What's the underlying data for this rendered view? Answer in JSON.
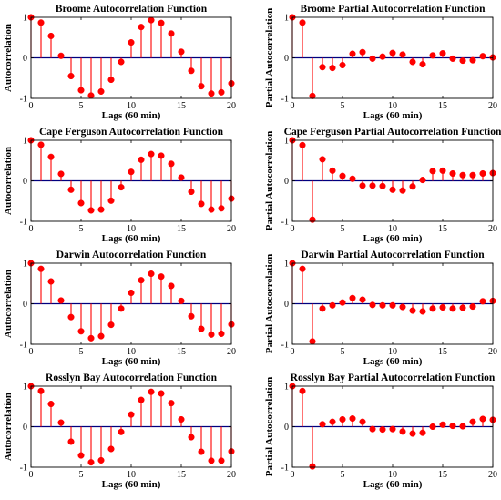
{
  "figure": {
    "colors": {
      "stem": "#ff0000",
      "baseline": "#00007f",
      "axis": "#000000",
      "background": "#ffffff"
    }
  },
  "chart_data": [
    {
      "type": "stem",
      "title": "Broome Autocorrelation Function",
      "xlabel": "Lags (60 min)",
      "ylabel": "Autocorrelation",
      "xlim": [
        0,
        20
      ],
      "ylim": [
        -1,
        1
      ],
      "xticks": [
        0,
        5,
        10,
        15,
        20
      ],
      "yticks": [
        -1,
        0,
        1
      ],
      "x": [
        0,
        1,
        2,
        3,
        4,
        5,
        6,
        7,
        8,
        9,
        10,
        11,
        12,
        13,
        14,
        15,
        16,
        17,
        18,
        19,
        20
      ],
      "values": [
        1.0,
        0.87,
        0.54,
        0.05,
        -0.45,
        -0.8,
        -0.93,
        -0.83,
        -0.54,
        -0.1,
        0.38,
        0.76,
        0.93,
        0.86,
        0.6,
        0.15,
        -0.32,
        -0.7,
        -0.88,
        -0.85,
        -0.63
      ]
    },
    {
      "type": "stem",
      "title": "Broome Partial Autocorrelation Function",
      "xlabel": "Lags (60 min)",
      "ylabel": "Partial Autocorrelation",
      "xlim": [
        0,
        20
      ],
      "ylim": [
        -1,
        1
      ],
      "xticks": [
        0,
        5,
        10,
        15,
        20
      ],
      "yticks": [
        -1,
        0,
        1
      ],
      "x": [
        0,
        1,
        2,
        3,
        4,
        5,
        6,
        7,
        8,
        9,
        10,
        11,
        12,
        13,
        14,
        15,
        16,
        17,
        18,
        19,
        20
      ],
      "values": [
        1.0,
        0.87,
        -0.94,
        -0.23,
        -0.25,
        -0.18,
        0.1,
        0.14,
        -0.02,
        0.03,
        0.12,
        0.08,
        -0.1,
        -0.16,
        0.06,
        0.11,
        -0.02,
        -0.07,
        -0.06,
        0.04,
        0.01
      ]
    },
    {
      "type": "stem",
      "title": "Cape Ferguson Autocorrelation Function",
      "xlabel": "Lags (60 min)",
      "ylabel": "Autocorrelation",
      "xlim": [
        0,
        20
      ],
      "ylim": [
        -1,
        1
      ],
      "xticks": [
        0,
        5,
        10,
        15,
        20
      ],
      "yticks": [
        -1,
        0,
        1
      ],
      "x": [
        0,
        1,
        2,
        3,
        4,
        5,
        6,
        7,
        8,
        9,
        10,
        11,
        12,
        13,
        14,
        15,
        16,
        17,
        18,
        19,
        20
      ],
      "values": [
        1.0,
        0.89,
        0.59,
        0.17,
        -0.22,
        -0.55,
        -0.73,
        -0.71,
        -0.49,
        -0.16,
        0.22,
        0.52,
        0.66,
        0.62,
        0.42,
        0.08,
        -0.27,
        -0.57,
        -0.71,
        -0.68,
        -0.44
      ]
    },
    {
      "type": "stem",
      "title": "Cape Ferguson Partial Autocorrelation Function",
      "xlabel": "Lags (60 min)",
      "ylabel": "Partial Autocorrelation",
      "xlim": [
        0,
        20
      ],
      "ylim": [
        -1,
        1
      ],
      "xticks": [
        0,
        5,
        10,
        15,
        20
      ],
      "yticks": [
        -1,
        0,
        1
      ],
      "x": [
        0,
        1,
        2,
        3,
        4,
        5,
        6,
        7,
        8,
        9,
        10,
        11,
        12,
        13,
        14,
        15,
        16,
        17,
        18,
        19,
        20
      ],
      "values": [
        1.0,
        0.88,
        -0.96,
        0.53,
        0.25,
        0.12,
        0.05,
        -0.12,
        -0.12,
        -0.13,
        -0.22,
        -0.24,
        -0.14,
        0.02,
        0.24,
        0.25,
        0.18,
        0.14,
        0.14,
        0.18,
        0.19
      ]
    },
    {
      "type": "stem",
      "title": "Darwin Autocorrelation Function",
      "xlabel": "Lags (60 min)",
      "ylabel": "Autocorrelation",
      "xlim": [
        0,
        20
      ],
      "ylim": [
        -1,
        1
      ],
      "xticks": [
        0,
        5,
        10,
        15,
        20
      ],
      "yticks": [
        -1,
        0,
        1
      ],
      "x": [
        0,
        1,
        2,
        3,
        4,
        5,
        6,
        7,
        8,
        9,
        10,
        11,
        12,
        13,
        14,
        15,
        16,
        17,
        18,
        19,
        20
      ],
      "values": [
        1.0,
        0.86,
        0.55,
        0.08,
        -0.33,
        -0.68,
        -0.85,
        -0.8,
        -0.52,
        -0.12,
        0.27,
        0.58,
        0.74,
        0.67,
        0.44,
        0.07,
        -0.31,
        -0.62,
        -0.76,
        -0.74,
        -0.51
      ]
    },
    {
      "type": "stem",
      "title": "Darwin Partial Autocorrelation Function",
      "xlabel": "Lags (60 min)",
      "ylabel": "Partial Autocorrelation",
      "xlim": [
        0,
        20
      ],
      "ylim": [
        -1,
        1
      ],
      "xticks": [
        0,
        5,
        10,
        15,
        20
      ],
      "yticks": [
        -1,
        0,
        1
      ],
      "x": [
        0,
        1,
        2,
        3,
        4,
        5,
        6,
        7,
        8,
        9,
        10,
        11,
        12,
        13,
        14,
        15,
        16,
        17,
        18,
        19,
        20
      ],
      "values": [
        1.0,
        0.86,
        -0.93,
        -0.12,
        -0.04,
        0.03,
        0.14,
        0.1,
        -0.03,
        -0.04,
        -0.04,
        -0.08,
        -0.17,
        -0.19,
        -0.12,
        -0.09,
        -0.12,
        -0.1,
        -0.07,
        0.06,
        0.07
      ]
    },
    {
      "type": "stem",
      "title": "Rosslyn Bay Autocorrelation Function",
      "xlabel": "Lags (60 min)",
      "ylabel": "Autocorrelation",
      "xlim": [
        0,
        20
      ],
      "ylim": [
        -1,
        1
      ],
      "xticks": [
        0,
        5,
        10,
        15,
        20
      ],
      "yticks": [
        -1,
        0,
        1
      ],
      "x": [
        0,
        1,
        2,
        3,
        4,
        5,
        6,
        7,
        8,
        9,
        10,
        11,
        12,
        13,
        14,
        15,
        16,
        17,
        18,
        19,
        20
      ],
      "values": [
        1.0,
        0.88,
        0.56,
        0.1,
        -0.37,
        -0.71,
        -0.88,
        -0.83,
        -0.55,
        -0.13,
        0.3,
        0.66,
        0.86,
        0.82,
        0.58,
        0.18,
        -0.26,
        -0.62,
        -0.84,
        -0.84,
        -0.61
      ]
    },
    {
      "type": "stem",
      "title": "Rosslyn Bay Partial Autocorrelation Function",
      "xlabel": "Lags (60 min)",
      "ylabel": "Partial Autocorrelation",
      "xlim": [
        0,
        20
      ],
      "ylim": [
        -1,
        1
      ],
      "xticks": [
        0,
        5,
        10,
        15,
        20
      ],
      "yticks": [
        -1,
        0,
        1
      ],
      "x": [
        0,
        1,
        2,
        3,
        4,
        5,
        6,
        7,
        8,
        9,
        10,
        11,
        12,
        13,
        14,
        15,
        16,
        17,
        18,
        19,
        20
      ],
      "values": [
        1.0,
        0.88,
        -0.98,
        0.06,
        0.12,
        0.18,
        0.2,
        0.12,
        -0.06,
        -0.07,
        -0.06,
        -0.12,
        -0.17,
        -0.15,
        0.0,
        0.05,
        0.02,
        0.01,
        0.12,
        0.19,
        0.17
      ]
    }
  ]
}
